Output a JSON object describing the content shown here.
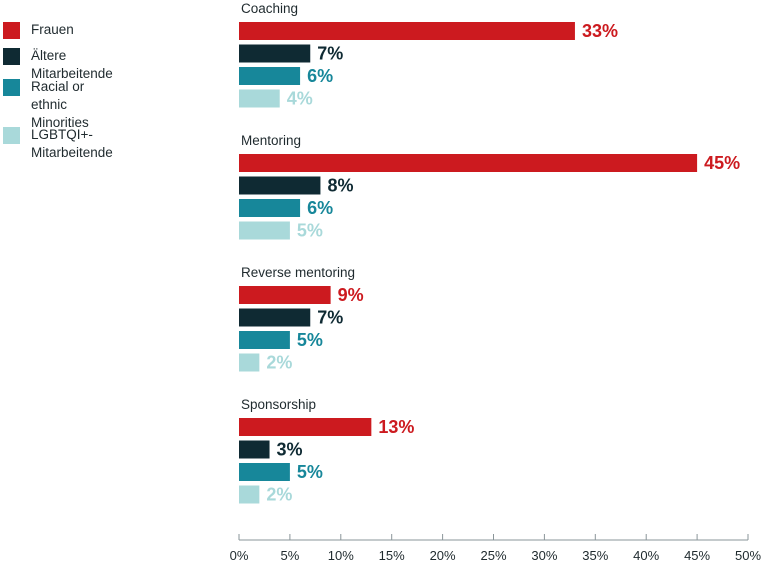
{
  "chart_data": {
    "type": "bar",
    "orientation": "horizontal",
    "title": "",
    "xlabel": "",
    "ylabel": "",
    "xlim": [
      0,
      50
    ],
    "x_ticks": [
      "0%",
      "5%",
      "10%",
      "15%",
      "20%",
      "25%",
      "30%",
      "35%",
      "40%",
      "45%",
      "50%"
    ],
    "grid": false,
    "legend_position": "left",
    "categories": [
      "Coaching",
      "Mentoring",
      "Reverse mentoring",
      "Sponsorship"
    ],
    "series": [
      {
        "name": "Frauen",
        "color": "#cc1a1f",
        "values": [
          33,
          45,
          9,
          13
        ],
        "labels": [
          "33%",
          "45%",
          "9%",
          "13%"
        ]
      },
      {
        "name": "Ältere Mitarbeitende",
        "color": "#0f2a33",
        "values": [
          7,
          8,
          7,
          3
        ],
        "labels": [
          "7%",
          "8%",
          "7%",
          "3%"
        ]
      },
      {
        "name": "Racial or\nethnic Minorities",
        "color": "#17879a",
        "values": [
          6,
          6,
          5,
          5
        ],
        "labels": [
          "6%",
          "6%",
          "5%",
          "5%"
        ]
      },
      {
        "name": "LGBTQI+-Mitarbeitende",
        "color": "#a9d9da",
        "values": [
          4,
          5,
          2,
          2
        ],
        "labels": [
          "4%",
          "5%",
          "2%",
          "2%"
        ]
      }
    ]
  }
}
